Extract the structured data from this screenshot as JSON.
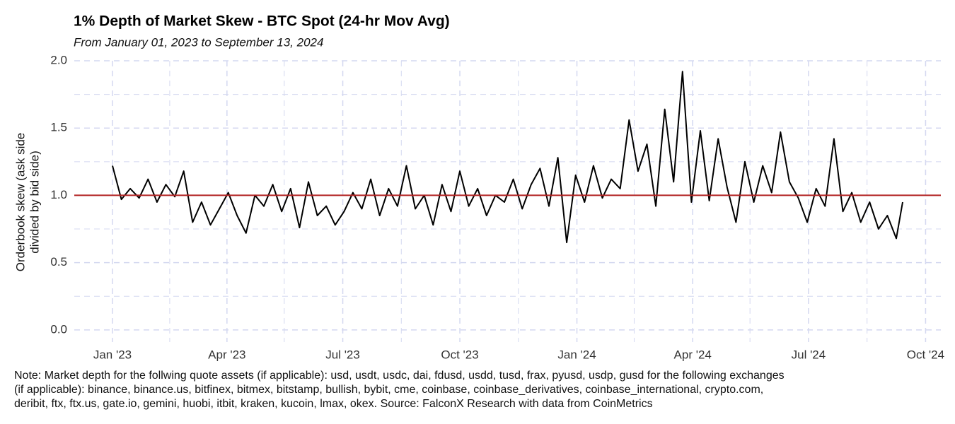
{
  "chart_data": {
    "type": "line",
    "title": "1% Depth of Market Skew - BTC Spot (24-hr Mov Avg)",
    "subtitle": "From January 01, 2023 to September 13, 2024",
    "ylabel": [
      "Orderbook skew (ask side",
      "divided by bid side)"
    ],
    "note": [
      "Note: Market depth for the follwing quote assets (if applicable): usd, usdt, usdc, dai, fdusd, usdd, tusd, frax, pyusd, usdp, gusd for the following exchanges",
      "(if applicable): binance, binance.us, bitfinex, bitmex, bitstamp, bullish, bybit, cme, coinbase, coinbase_derivatives, coinbase_international, crypto.com,",
      "deribit, ftx, ftx.us, gate.io, gemini, huobi, itbit, kraken, kucoin, lmax, okex. Source: FalconX Research with data from CoinMetrics"
    ],
    "x": [
      "2023-01-01",
      "2023-01-08",
      "2023-01-15",
      "2023-01-22",
      "2023-01-29",
      "2023-02-05",
      "2023-02-12",
      "2023-02-19",
      "2023-02-26",
      "2023-03-05",
      "2023-03-12",
      "2023-03-19",
      "2023-03-26",
      "2023-04-02",
      "2023-04-09",
      "2023-04-16",
      "2023-04-23",
      "2023-04-30",
      "2023-05-07",
      "2023-05-14",
      "2023-05-21",
      "2023-05-28",
      "2023-06-04",
      "2023-06-11",
      "2023-06-18",
      "2023-06-25",
      "2023-07-02",
      "2023-07-09",
      "2023-07-16",
      "2023-07-23",
      "2023-07-30",
      "2023-08-06",
      "2023-08-13",
      "2023-08-20",
      "2023-08-27",
      "2023-09-03",
      "2023-09-10",
      "2023-09-17",
      "2023-09-24",
      "2023-10-01",
      "2023-10-08",
      "2023-10-15",
      "2023-10-22",
      "2023-10-29",
      "2023-11-05",
      "2023-11-12",
      "2023-11-19",
      "2023-11-26",
      "2023-12-03",
      "2023-12-10",
      "2023-12-17",
      "2023-12-24",
      "2023-12-31",
      "2024-01-07",
      "2024-01-14",
      "2024-01-21",
      "2024-01-28",
      "2024-02-04",
      "2024-02-11",
      "2024-02-18",
      "2024-02-25",
      "2024-03-03",
      "2024-03-10",
      "2024-03-17",
      "2024-03-24",
      "2024-03-31",
      "2024-04-07",
      "2024-04-14",
      "2024-04-21",
      "2024-04-28",
      "2024-05-05",
      "2024-05-12",
      "2024-05-19",
      "2024-05-26",
      "2024-06-02",
      "2024-06-09",
      "2024-06-16",
      "2024-06-23",
      "2024-06-30",
      "2024-07-07",
      "2024-07-14",
      "2024-07-21",
      "2024-07-28",
      "2024-08-04",
      "2024-08-11",
      "2024-08-18",
      "2024-08-25",
      "2024-09-01",
      "2024-09-08",
      "2024-09-13"
    ],
    "series": [
      {
        "color": "#000000",
        "values": [
          1.22,
          0.97,
          1.05,
          0.98,
          1.12,
          0.95,
          1.08,
          0.99,
          1.18,
          0.8,
          0.95,
          0.78,
          0.9,
          1.02,
          0.85,
          0.72,
          1.0,
          0.92,
          1.08,
          0.88,
          1.05,
          0.76,
          1.1,
          0.85,
          0.92,
          0.78,
          0.88,
          1.02,
          0.9,
          1.12,
          0.85,
          1.05,
          0.92,
          1.22,
          0.9,
          1.0,
          0.78,
          1.08,
          0.88,
          1.18,
          0.92,
          1.05,
          0.85,
          1.0,
          0.95,
          1.12,
          0.9,
          1.08,
          1.2,
          0.92,
          1.28,
          0.65,
          1.15,
          0.95,
          1.22,
          0.98,
          1.12,
          1.05,
          1.56,
          1.18,
          1.38,
          0.92,
          1.64,
          1.1,
          1.92,
          0.95,
          1.48,
          0.96,
          1.42,
          1.06,
          0.8,
          1.25,
          0.95,
          1.22,
          1.02,
          1.47,
          1.1,
          0.98,
          0.8,
          1.05,
          0.92,
          1.42,
          0.88,
          1.02,
          0.8,
          0.95,
          0.75,
          0.85,
          0.68,
          0.95
        ]
      }
    ],
    "hline": 1.0,
    "hline_color": "#b22222",
    "xlim": [
      "2022-12-02",
      "2024-10-13"
    ],
    "xticks": [
      {
        "value": "2023-01-01",
        "label": "Jan '23"
      },
      {
        "value": "2023-04-01",
        "label": "Apr '23"
      },
      {
        "value": "2023-07-01",
        "label": "Jul '23"
      },
      {
        "value": "2023-10-01",
        "label": "Oct '23"
      },
      {
        "value": "2024-01-01",
        "label": "Jan '24"
      },
      {
        "value": "2024-04-01",
        "label": "Apr '24"
      },
      {
        "value": "2024-07-01",
        "label": "Jul '24"
      },
      {
        "value": "2024-10-01",
        "label": "Oct '24"
      }
    ],
    "x_minor_ticks": [
      "2023-02-15",
      "2023-05-16",
      "2023-08-16",
      "2023-11-16",
      "2024-02-15",
      "2024-05-16",
      "2024-08-16"
    ],
    "ylim": [
      -0.09,
      2.0
    ],
    "yticks": [
      {
        "value": 0,
        "label": "0.0"
      },
      0.5,
      {
        "value": 1,
        "label": "1.0"
      },
      1.5,
      {
        "value": 2,
        "label": "2.0"
      }
    ],
    "y_minor_ticks": [
      0.25,
      0.75,
      1.25,
      1.75
    ],
    "grid": true,
    "grid_color": "#d4d8f0"
  }
}
